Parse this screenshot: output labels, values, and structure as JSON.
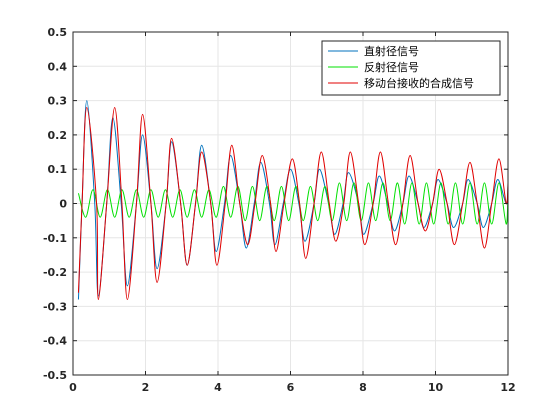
{
  "chart_data": {
    "type": "line",
    "title": "",
    "xlabel": "",
    "ylabel": "",
    "xlim": [
      0,
      12
    ],
    "ylim": [
      -0.5,
      0.5
    ],
    "xticks": [
      0,
      2,
      4,
      6,
      8,
      10,
      12
    ],
    "yticks": [
      -0.5,
      -0.4,
      -0.3,
      -0.2,
      -0.1,
      0,
      0.1,
      0.2,
      0.3,
      0.4,
      0.5
    ],
    "xtick_labels": [
      "0",
      "2",
      "4",
      "6",
      "8",
      "10",
      "12"
    ],
    "ytick_labels": [
      "-0.5",
      "-0.4",
      "-0.3",
      "-0.2",
      "-0.1",
      "0",
      "0.1",
      "0.2",
      "0.3",
      "0.4",
      "0.5"
    ],
    "grid": true,
    "legend_position": "top-right",
    "series": [
      {
        "name": "直射径信号",
        "color": "#0072BD",
        "x": [
          0.15,
          0.25,
          0.38,
          0.6,
          0.7,
          0.93,
          1.1,
          1.33,
          1.5,
          1.75,
          1.92,
          2.15,
          2.32,
          2.57,
          2.72,
          2.97,
          3.15,
          3.38,
          3.55,
          3.8,
          3.95,
          4.18,
          4.35,
          4.6,
          4.78,
          5.0,
          5.18,
          5.42,
          5.57,
          5.8,
          6.0,
          6.23,
          6.4,
          6.65,
          6.8,
          7.05,
          7.22,
          7.45,
          7.6,
          7.88,
          8.02,
          8.28,
          8.45,
          8.68,
          8.87,
          9.1,
          9.27,
          9.52,
          9.68,
          9.92,
          10.07,
          10.32,
          10.5,
          10.75,
          10.9,
          11.15,
          11.32,
          11.55,
          11.72,
          11.95,
          12.0
        ],
        "y": [
          -0.28,
          0.0,
          0.3,
          0.0,
          -0.27,
          0.0,
          0.25,
          0.0,
          -0.24,
          0.0,
          0.2,
          0.0,
          -0.19,
          0.0,
          0.18,
          0.0,
          -0.18,
          0.0,
          0.17,
          0.0,
          -0.14,
          0.0,
          0.14,
          0.0,
          -0.13,
          0.0,
          0.12,
          0.0,
          -0.12,
          0.0,
          0.1,
          0.0,
          -0.11,
          0.0,
          0.1,
          0.0,
          -0.09,
          0.0,
          0.09,
          0.0,
          -0.09,
          0.0,
          0.08,
          0.0,
          -0.08,
          0.0,
          0.08,
          0.0,
          -0.07,
          0.0,
          0.07,
          0.0,
          -0.07,
          0.0,
          0.07,
          0.0,
          -0.07,
          0.0,
          0.07,
          0.0,
          0.05
        ]
      },
      {
        "name": "反射径信号",
        "color": "#00E000",
        "x": [
          0.15,
          0.35,
          0.55,
          0.75,
          0.95,
          1.15,
          1.35,
          1.55,
          1.75,
          1.95,
          2.15,
          2.35,
          2.55,
          2.75,
          2.95,
          3.15,
          3.35,
          3.55,
          3.75,
          3.95,
          4.15,
          4.35,
          4.55,
          4.75,
          4.95,
          5.15,
          5.35,
          5.55,
          5.75,
          5.95,
          6.15,
          6.35,
          6.55,
          6.75,
          6.95,
          7.15,
          7.35,
          7.55,
          7.75,
          7.95,
          8.15,
          8.35,
          8.55,
          8.75,
          8.95,
          9.15,
          9.35,
          9.55,
          9.75,
          9.95,
          10.15,
          10.35,
          10.55,
          10.75,
          10.95,
          11.15,
          11.35,
          11.55,
          11.75,
          11.95,
          12.0
        ],
        "y": [
          0.03,
          -0.04,
          0.04,
          -0.04,
          0.04,
          -0.04,
          0.04,
          -0.04,
          0.04,
          -0.04,
          0.04,
          -0.04,
          0.04,
          -0.04,
          0.04,
          -0.04,
          0.04,
          -0.04,
          0.04,
          -0.04,
          0.05,
          -0.04,
          0.05,
          -0.05,
          0.05,
          -0.05,
          0.05,
          -0.05,
          0.05,
          -0.05,
          0.05,
          -0.05,
          0.05,
          -0.05,
          0.05,
          -0.05,
          0.06,
          -0.05,
          0.06,
          -0.05,
          0.06,
          -0.05,
          0.06,
          -0.05,
          0.06,
          -0.06,
          0.06,
          -0.06,
          0.06,
          -0.06,
          0.06,
          -0.06,
          0.06,
          -0.06,
          0.06,
          -0.06,
          0.06,
          -0.06,
          0.06,
          -0.06,
          0.04
        ]
      },
      {
        "name": "移动台接收的合成信号",
        "color": "#E00000",
        "x": [
          0.15,
          0.25,
          0.38,
          0.65,
          0.7,
          0.93,
          1.15,
          1.35,
          1.5,
          1.75,
          1.92,
          2.15,
          2.32,
          2.57,
          2.72,
          2.97,
          3.15,
          3.38,
          3.55,
          3.8,
          3.97,
          4.2,
          4.38,
          4.6,
          4.82,
          5.02,
          5.22,
          5.45,
          5.6,
          5.82,
          6.05,
          6.25,
          6.42,
          6.65,
          6.85,
          7.07,
          7.25,
          7.47,
          7.65,
          7.88,
          8.05,
          8.28,
          8.48,
          8.7,
          8.9,
          9.1,
          9.3,
          9.52,
          9.72,
          9.92,
          10.1,
          10.32,
          10.52,
          10.75,
          10.95,
          11.15,
          11.35,
          11.55,
          11.75,
          11.95,
          12.0
        ],
        "y": [
          -0.26,
          0.0,
          0.28,
          0.0,
          -0.28,
          0.0,
          0.28,
          0.0,
          -0.28,
          0.0,
          0.26,
          0.0,
          -0.23,
          0.0,
          0.19,
          0.0,
          -0.18,
          0.0,
          0.15,
          0.0,
          -0.18,
          0.0,
          0.17,
          0.0,
          -0.12,
          0.0,
          0.14,
          0.0,
          -0.14,
          0.0,
          0.13,
          0.0,
          -0.16,
          0.0,
          0.15,
          0.0,
          -0.11,
          0.0,
          0.15,
          0.0,
          -0.12,
          0.0,
          0.15,
          0.0,
          -0.12,
          0.0,
          0.14,
          0.0,
          -0.08,
          0.0,
          0.1,
          0.0,
          -0.12,
          0.0,
          0.12,
          0.0,
          -0.13,
          0.0,
          0.13,
          0.0,
          0.06
        ]
      }
    ]
  }
}
